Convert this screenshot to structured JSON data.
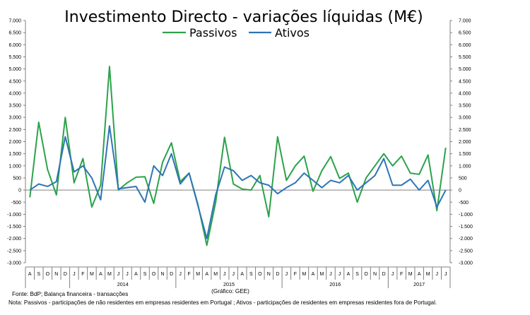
{
  "chart_data": {
    "type": "line",
    "title": "Investimento Directo - variações líquidas (M€)",
    "legend_position": "top-center",
    "y_ticks": [
      7000,
      6500,
      6000,
      5500,
      5000,
      4500,
      4000,
      3500,
      3000,
      2500,
      2000,
      1500,
      1000,
      500,
      0,
      -500,
      -1000,
      -1500,
      -2000,
      -2500,
      -3000
    ],
    "y_tick_labels": [
      "7.000",
      "6.500",
      "6.000",
      "5.500",
      "5.000",
      "4.500",
      "4.000",
      "3.500",
      "3.000",
      "2.500",
      "2.000",
      "1.500",
      "1.000",
      "500",
      "0",
      "-500",
      "-1.000",
      "-1.500",
      "-2.000",
      "-2.500",
      "-3.000"
    ],
    "ylim": [
      -3000,
      7000
    ],
    "months": [
      "A",
      "S",
      "O",
      "N",
      "D",
      "J",
      "F",
      "M",
      "A",
      "M",
      "J",
      "J",
      "A",
      "S",
      "O",
      "N",
      "D",
      "J",
      "F",
      "M",
      "A",
      "M",
      "J",
      "J",
      "A",
      "S",
      "O",
      "N",
      "D",
      "J",
      "F",
      "M",
      "A",
      "M",
      "J",
      "J",
      "A",
      "S",
      "O",
      "N",
      "D",
      "J",
      "F",
      "M",
      "A",
      "M",
      "J",
      "J"
    ],
    "years": [
      {
        "label": "2014",
        "start": 5,
        "end": 16
      },
      {
        "label": "2015",
        "start": 17,
        "end": 28
      },
      {
        "label": "2016",
        "start": 29,
        "end": 40
      },
      {
        "label": "2017",
        "start": 41,
        "end": 47
      }
    ],
    "year_dividers": [
      4.5,
      16.5,
      28.5,
      40.5
    ],
    "series": [
      {
        "name": "Passivos",
        "color": "#2ca24a",
        "values": [
          -300,
          2800,
          850,
          -200,
          3000,
          300,
          1300,
          -700,
          200,
          5100,
          0,
          300,
          530,
          550,
          -550,
          1150,
          1950,
          350,
          700,
          -600,
          -2280,
          -500,
          2180,
          250,
          40,
          0,
          600,
          -1100,
          2200,
          400,
          1000,
          1400,
          -50,
          800,
          1380,
          480,
          700,
          -500,
          500,
          1000,
          1500,
          1000,
          1400,
          700,
          650,
          1450,
          -850,
          1750
        ]
      },
      {
        "name": "Ativos",
        "color": "#2e75b6",
        "values": [
          0,
          250,
          150,
          350,
          2200,
          750,
          1000,
          500,
          -400,
          2650,
          50,
          100,
          150,
          -500,
          1000,
          600,
          1500,
          250,
          700,
          -650,
          -2000,
          -200,
          950,
          800,
          400,
          600,
          300,
          200,
          -150,
          100,
          300,
          700,
          400,
          100,
          400,
          300,
          600,
          0,
          300,
          600,
          1300,
          200,
          200,
          450,
          0,
          400,
          -700,
          0
        ]
      }
    ],
    "source_text": "Fonte: BdP; Balança financeira - transacções",
    "credit_text": "(Gráfico: GEE)",
    "note_text": "Nota: Passivos - participações de não residentes em empresas residentes em Portugal ; Ativos - participações de residentes em empresas residentes fora de Portugal."
  }
}
